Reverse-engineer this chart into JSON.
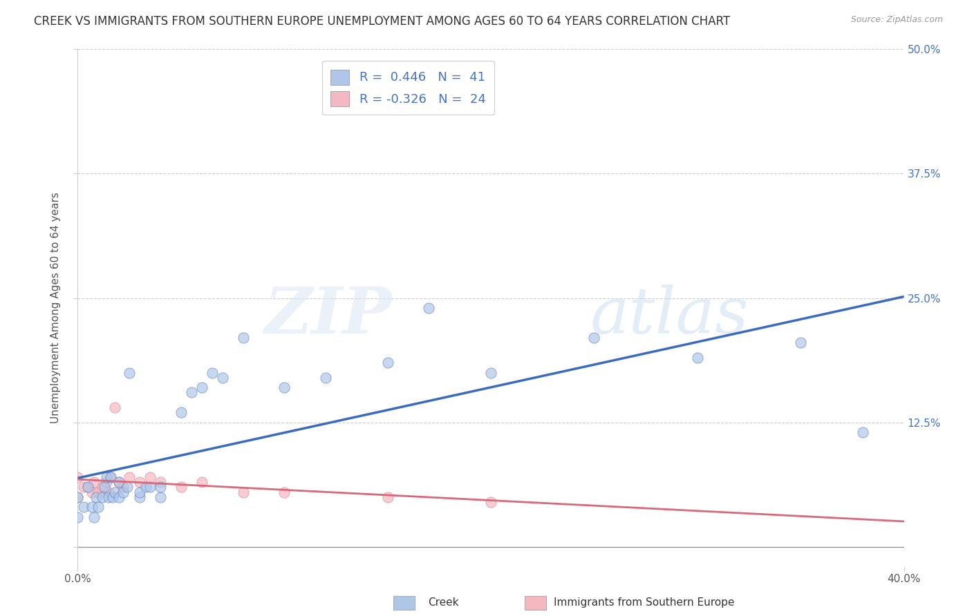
{
  "title": "CREEK VS IMMIGRANTS FROM SOUTHERN EUROPE UNEMPLOYMENT AMONG AGES 60 TO 64 YEARS CORRELATION CHART",
  "source": "Source: ZipAtlas.com",
  "ylabel": "Unemployment Among Ages 60 to 64 years",
  "xlim": [
    0.0,
    0.4
  ],
  "ylim": [
    -0.02,
    0.5
  ],
  "ytick_positions": [
    0.0,
    0.125,
    0.25,
    0.375,
    0.5
  ],
  "ytick_labels": [
    "",
    "12.5%",
    "25.0%",
    "37.5%",
    "50.0%"
  ],
  "xtick_positions": [
    0.0,
    0.4
  ],
  "xtick_labels": [
    "0.0%",
    "40.0%"
  ],
  "creek_color": "#aec6e8",
  "creek_line_color": "#3a6bbf",
  "immig_color": "#f4b8c1",
  "immig_line_color": "#d9687a",
  "creek_R": 0.446,
  "creek_N": 41,
  "immig_R": -0.326,
  "immig_N": 24,
  "creek_scatter_x": [
    0.0,
    0.0,
    0.003,
    0.005,
    0.007,
    0.008,
    0.009,
    0.01,
    0.012,
    0.013,
    0.014,
    0.015,
    0.016,
    0.017,
    0.018,
    0.02,
    0.02,
    0.022,
    0.024,
    0.025,
    0.03,
    0.03,
    0.033,
    0.035,
    0.04,
    0.04,
    0.05,
    0.055,
    0.06,
    0.065,
    0.07,
    0.08,
    0.1,
    0.12,
    0.15,
    0.17,
    0.2,
    0.25,
    0.3,
    0.35,
    0.38
  ],
  "creek_scatter_y": [
    0.03,
    0.05,
    0.04,
    0.06,
    0.04,
    0.03,
    0.05,
    0.04,
    0.05,
    0.06,
    0.07,
    0.05,
    0.07,
    0.05,
    0.055,
    0.05,
    0.065,
    0.055,
    0.06,
    0.175,
    0.05,
    0.055,
    0.06,
    0.06,
    0.05,
    0.06,
    0.135,
    0.155,
    0.16,
    0.175,
    0.17,
    0.21,
    0.16,
    0.17,
    0.185,
    0.24,
    0.175,
    0.21,
    0.19,
    0.205,
    0.115
  ],
  "immig_scatter_x": [
    0.0,
    0.0,
    0.003,
    0.005,
    0.007,
    0.008,
    0.01,
    0.012,
    0.014,
    0.015,
    0.016,
    0.018,
    0.02,
    0.022,
    0.025,
    0.03,
    0.035,
    0.04,
    0.05,
    0.06,
    0.08,
    0.1,
    0.15,
    0.2
  ],
  "immig_scatter_y": [
    0.05,
    0.07,
    0.06,
    0.06,
    0.055,
    0.065,
    0.055,
    0.06,
    0.065,
    0.055,
    0.07,
    0.14,
    0.065,
    0.06,
    0.07,
    0.065,
    0.07,
    0.065,
    0.06,
    0.065,
    0.055,
    0.055,
    0.05,
    0.045
  ],
  "background_color": "#ffffff",
  "watermark_zip": "ZIP",
  "watermark_atlas": "atlas",
  "title_fontsize": 12,
  "label_fontsize": 11,
  "tick_fontsize": 11,
  "legend_fontsize": 13
}
